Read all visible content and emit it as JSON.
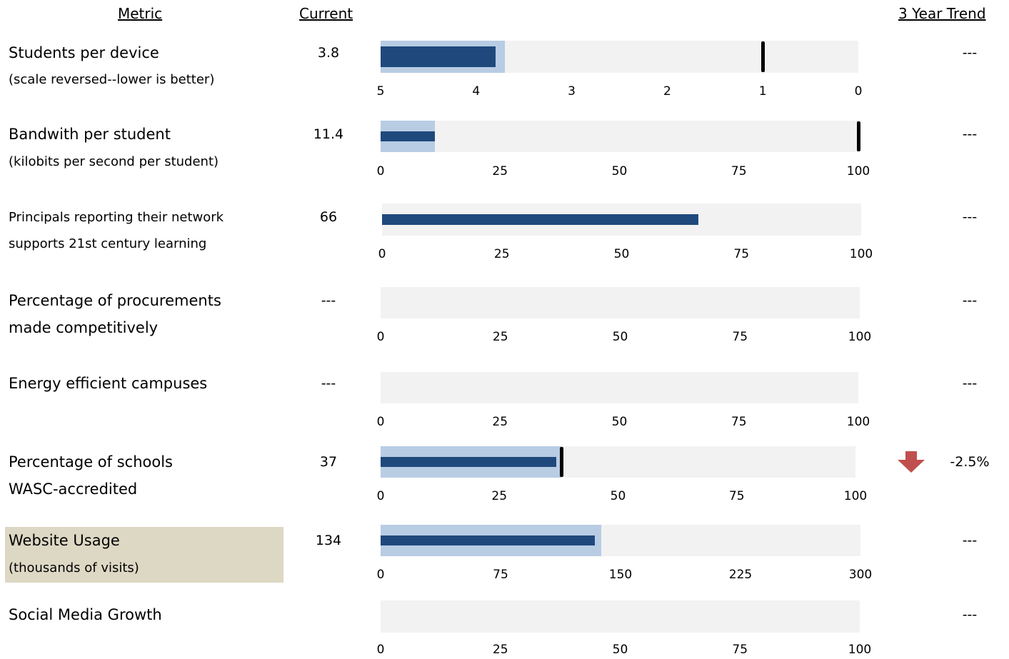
{
  "headers": {
    "metric": "Metric ",
    "current": "Current",
    "trend": "3 Year Trend"
  },
  "chart_data": [
    {
      "type": "bullet",
      "label": "Students per device",
      "sublabel": "(scale reversed--lower is better)",
      "current": "3.8",
      "trend": "---",
      "value": 3.8,
      "qualitative": 3.7,
      "target": 1,
      "range": [
        5,
        0
      ],
      "ticks": [
        "5",
        "4",
        "3",
        "2",
        "1",
        "0"
      ]
    },
    {
      "type": "bullet",
      "label": "Bandwith per student",
      "sublabel": "(kilobits per second per student)",
      "current": "11.4",
      "trend": "---",
      "value": 11.4,
      "qualitative": 11.4,
      "target": 100,
      "range": [
        0,
        100
      ],
      "ticks": [
        "0",
        "25",
        "50",
        "75",
        "100"
      ]
    },
    {
      "type": "bullet",
      "label": "Principals reporting their network",
      "sublabel": "supports 21st century learning",
      "current": "66",
      "trend": "---",
      "value": 66,
      "range": [
        0,
        100
      ],
      "ticks": [
        "0",
        "25",
        "50",
        "75",
        "100"
      ]
    },
    {
      "type": "bullet",
      "label": "Percentage of procurements",
      "sublabel": "made competitively",
      "current": "---",
      "trend": "---",
      "range": [
        0,
        100
      ],
      "ticks": [
        "0",
        "25",
        "50",
        "75",
        "100"
      ]
    },
    {
      "type": "bullet",
      "label": "Energy efficient campuses",
      "sublabel": "",
      "current": "---",
      "trend": "---",
      "range": [
        0,
        100
      ],
      "ticks": [
        "0",
        "25",
        "50",
        "75",
        "100"
      ]
    },
    {
      "type": "bullet",
      "label": "Percentage of schools",
      "sublabel": "WASC-accredited",
      "current": "37",
      "trend": "-2.5%",
      "trend_direction": "down",
      "trend_color": "#c0504d",
      "value": 37,
      "qualitative": 38,
      "target": 38,
      "range": [
        0,
        100
      ],
      "ticks": [
        "0",
        "25",
        "50",
        "75",
        "100"
      ]
    },
    {
      "type": "bullet",
      "label": "Website Usage",
      "sublabel": "(thousands of visits)",
      "highlighted": true,
      "current": "134",
      "trend": "---",
      "value": 134,
      "qualitative": 138,
      "range": [
        0,
        300
      ],
      "ticks": [
        "0",
        "75",
        "150",
        "225",
        "300"
      ]
    },
    {
      "type": "bullet",
      "label": "Social Media Growth",
      "sublabel": "",
      "current": "",
      "trend": "---",
      "range": [
        0,
        100
      ],
      "ticks": [
        "0",
        "25",
        "50",
        "75",
        "100"
      ]
    }
  ],
  "colors": {
    "bar": "#1f497d",
    "qualitative": "#b8cce4",
    "background": "#f2f2f2",
    "target": "#000000",
    "highlight": "#ddd8c4",
    "down_arrow": "#c0504d"
  }
}
